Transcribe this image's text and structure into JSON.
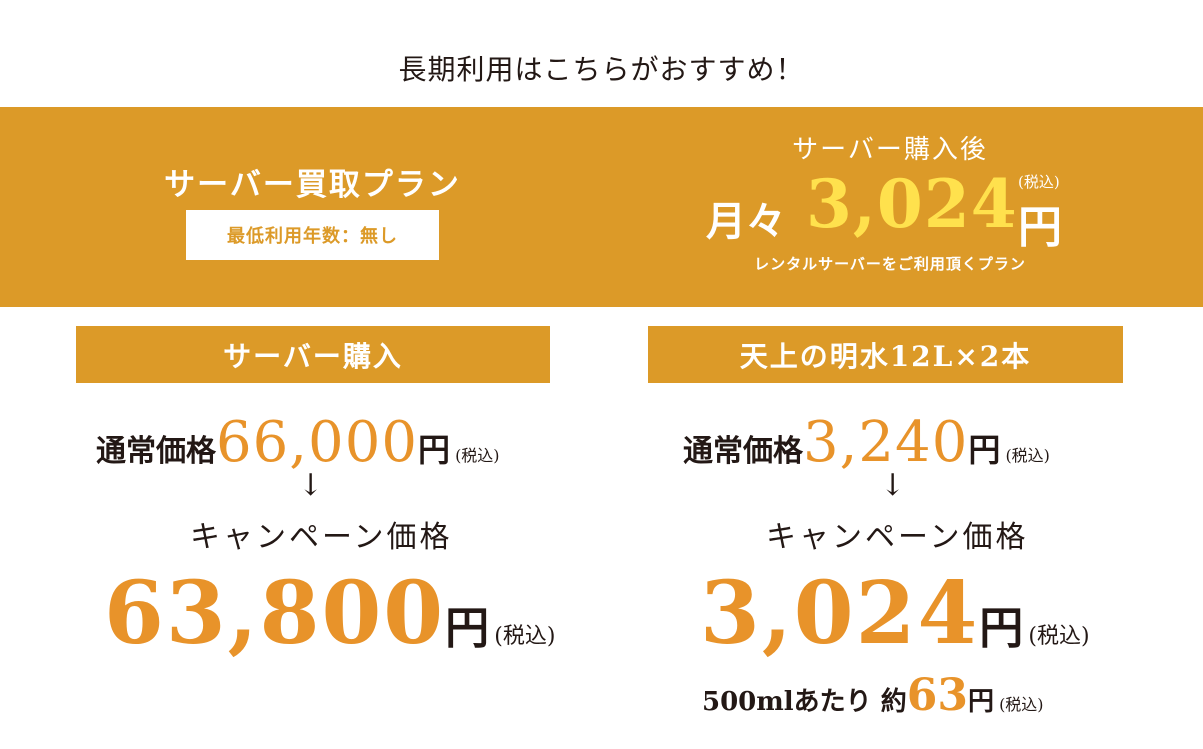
{
  "top_heading": "長期利用はこちらがおすすめ！",
  "banner": {
    "plan_title": "サーバー買取プラン",
    "plan_box": "最低利用年数：無し",
    "after_label": "サーバー購入後",
    "monthly_prefix": "月々",
    "monthly_price": "3,024",
    "monthly_yen": "円",
    "monthly_tax": "(税込)",
    "note": "レンタルサーバーをご利用頂くプラン"
  },
  "colors": {
    "gold": "#dc9a28",
    "orange": "#e8932a",
    "yellow": "#ffe14d",
    "text": "#231815"
  },
  "left": {
    "header": "サーバー購入",
    "regular_label": "通常価格",
    "regular_price": "66,000",
    "yen": "円",
    "tax": "(税込)",
    "arrow": "↓",
    "campaign_label": "キャンペーン価格",
    "campaign_price": "63,800",
    "campaign_yen": "円",
    "campaign_tax": "(税込)"
  },
  "right": {
    "header": "天上の明水12L×2本",
    "regular_label": "通常価格",
    "regular_price": "3,240",
    "yen": "円",
    "tax": "(税込)",
    "arrow": "↓",
    "campaign_label": "キャンペーン価格",
    "campaign_price": "3,024",
    "campaign_yen": "円",
    "campaign_tax": "(税込)",
    "per_label": "500mlあたり 約",
    "per_price": "63",
    "per_yen": "円",
    "per_tax": "(税込)"
  }
}
